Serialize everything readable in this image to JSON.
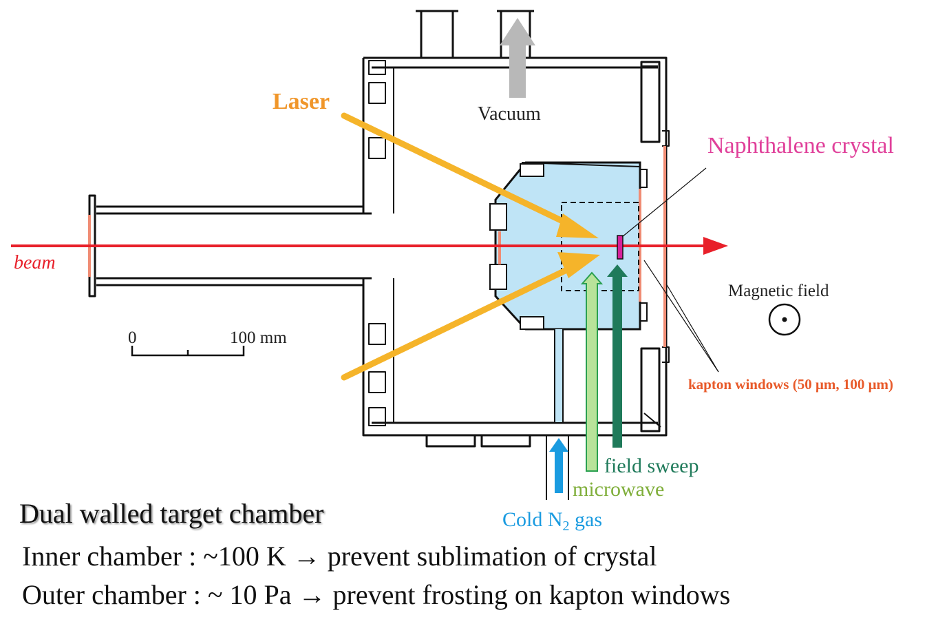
{
  "labels": {
    "laser": "Laser",
    "vacuum": "Vacuum",
    "naphthalene_crystal": "Naphthalene crystal",
    "beam": "beam",
    "magnetic_field": "Magnetic field",
    "scale_zero": "0",
    "scale_max": "100 mm",
    "kapton_windows": "kapton windows (50 μm, 100 μm)",
    "field_sweep": "field sweep",
    "microwave": "microwave",
    "cold_n2_prefix": "Cold N",
    "cold_n2_sub": "2",
    "cold_n2_suffix": " gas"
  },
  "captions": {
    "title": "Dual walled target chamber",
    "line1": "Inner chamber : ~100 K → prevent sublimation of crystal",
    "line2": "Outer chamber : ~ 10 Pa → prevent frosting on kapton windows"
  },
  "colors": {
    "beam": "#e8202a",
    "laser": "#f5a623",
    "laser_label": "#f0962a",
    "vacuum_arrow": "#b8b8b8",
    "inner_chamber_fill": "#bfe4f6",
    "kapton": "#f08c74",
    "kapton_label": "#e85a2a",
    "crystal": "#d6209a",
    "crystal_label": "#e0409a",
    "field_sweep": "#1f7a5a",
    "microwave_fill": "#b8e39a",
    "microwave_label": "#7fae3a",
    "cold_n2": "#1a9be0"
  }
}
